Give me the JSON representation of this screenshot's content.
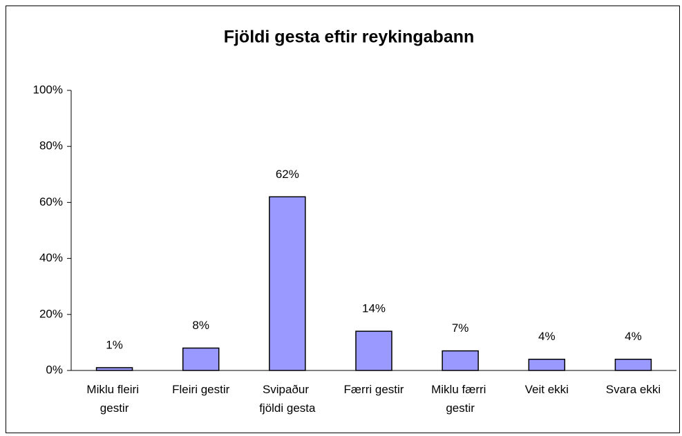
{
  "chart_data": {
    "type": "bar",
    "title": "Fjöldi gesta eftir reykingabann",
    "categories": [
      "Miklu fleiri gestir",
      "Fleiri gestir",
      "Svipaður fjöldi gesta",
      "Færri gestir",
      "Miklu færri gestir",
      "Veit ekki",
      "Svara ekki"
    ],
    "values": [
      1,
      8,
      62,
      14,
      7,
      4,
      4
    ],
    "value_labels": [
      "1%",
      "8%",
      "62%",
      "14%",
      "7%",
      "4%",
      "4%"
    ],
    "color": "#9999ff",
    "ylim": [
      0,
      100
    ],
    "yticks": [
      {
        "value": 0,
        "label": "0%"
      },
      {
        "value": 20,
        "label": "20%"
      },
      {
        "value": 40,
        "label": "40%"
      },
      {
        "value": 60,
        "label": "60%"
      },
      {
        "value": 80,
        "label": "80%"
      },
      {
        "value": 100,
        "label": "100%"
      }
    ],
    "grid": false
  }
}
